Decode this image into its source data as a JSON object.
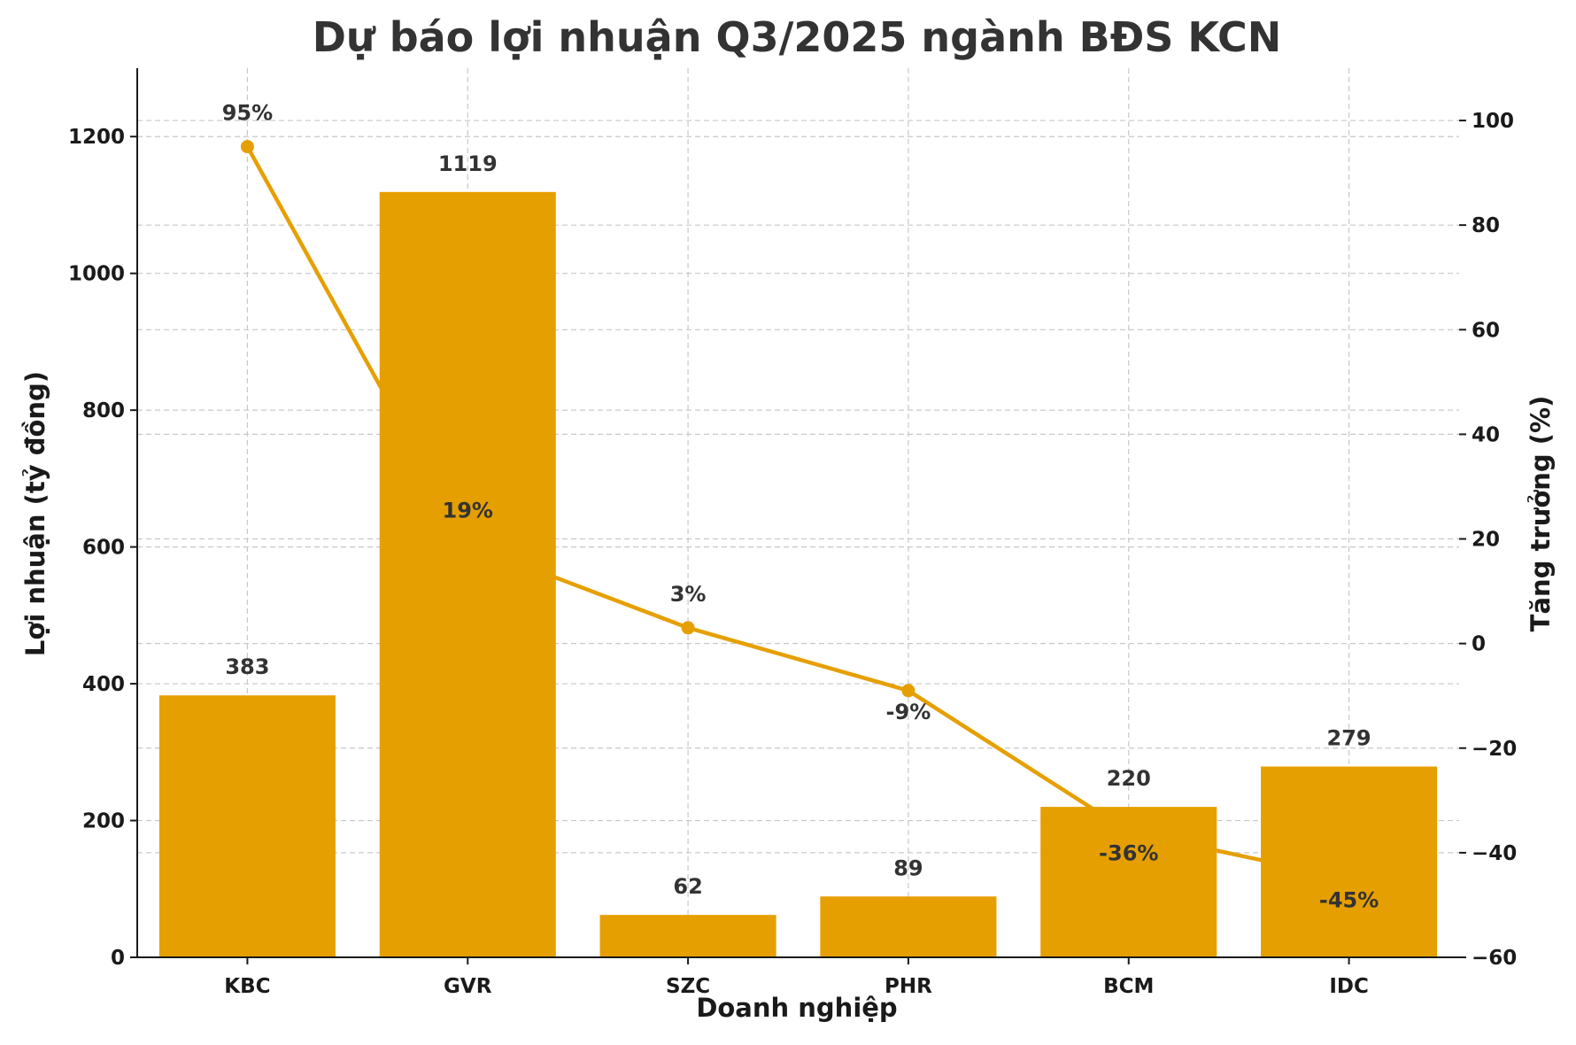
{
  "chart_data": {
    "type": "bar",
    "title": "Dự báo lợi nhuận Q3/2025 ngành BĐS KCN",
    "xlabel": "Doanh nghiệp",
    "ylabel": "Lợi nhuận (tỷ đồng)",
    "y2label": "Tăng trưởng (%)",
    "categories": [
      "KBC",
      "GVR",
      "SZC",
      "PHR",
      "BCM",
      "IDC"
    ],
    "series": [
      {
        "type": "bar",
        "axis": "left",
        "values": [
          383,
          1119,
          62,
          89,
          220,
          279
        ],
        "labels": [
          "383",
          "1119",
          "62",
          "89",
          "220",
          "279"
        ],
        "color": "#E69F00"
      },
      {
        "type": "line",
        "axis": "right",
        "values": [
          95,
          19,
          3,
          -9,
          -36,
          -45
        ],
        "labels": [
          "95%",
          "19%",
          "3%",
          "-9%",
          "-36%",
          "-45%"
        ],
        "color": "#E69F00"
      }
    ],
    "ylim": [
      0,
      1300
    ],
    "yticks": [
      0,
      200,
      400,
      600,
      800,
      1000,
      1200
    ],
    "ytick_labels": [
      "0",
      "200",
      "400",
      "600",
      "800",
      "1000",
      "1200"
    ],
    "y2lim": [
      -60,
      110
    ],
    "y2ticks": [
      -60,
      -40,
      -20,
      0,
      20,
      40,
      60,
      80,
      100
    ],
    "y2tick_labels": [
      "−60",
      "−40",
      "−20",
      "0",
      "20",
      "40",
      "60",
      "80",
      "100"
    ],
    "grid": true,
    "legend": "none"
  }
}
